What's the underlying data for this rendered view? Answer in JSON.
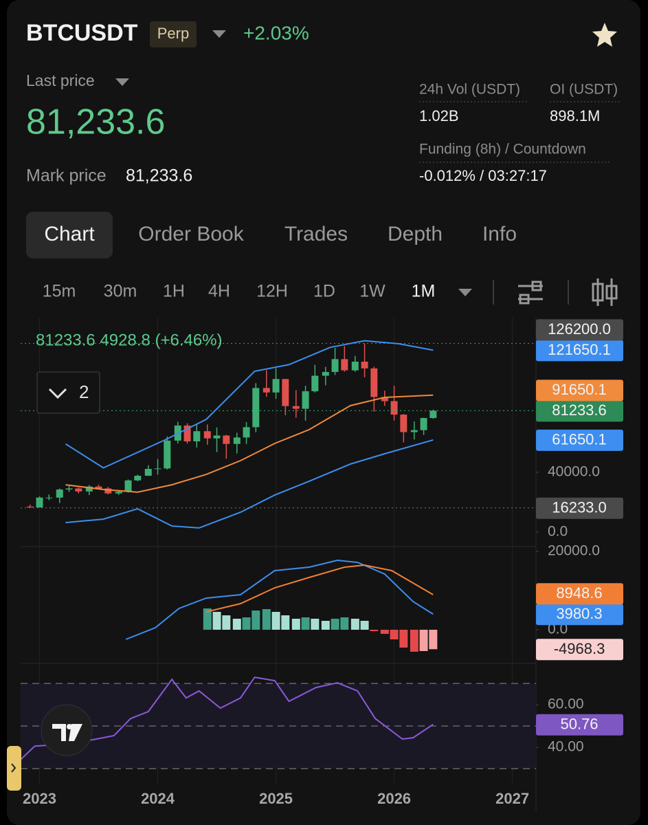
{
  "header": {
    "symbol": "BTCUSDT",
    "badge": "Perp",
    "change": "+2.03%"
  },
  "price": {
    "label": "Last price",
    "value": "81,233.6",
    "mark_label": "Mark price",
    "mark_value": "81,233.6"
  },
  "stats": [
    {
      "label": "24h Vol (USDT)",
      "value": "1.02B"
    },
    {
      "label": "OI (USDT)",
      "value": "898.1M"
    },
    {
      "label": "Funding (8h) / Countdown",
      "value": "-0.012% / 03:27:17"
    }
  ],
  "tabs": [
    "Chart",
    "Order Book",
    "Trades",
    "Depth",
    "Info"
  ],
  "intervals": [
    "15m",
    "30m",
    "1H",
    "4H",
    "12H",
    "1D",
    "1W",
    "1M"
  ],
  "chart_data": [
    {
      "type": "candlestick",
      "legend": "81233.6  4928.8 (+6.46%)",
      "indicator_count": "2",
      "xlim": [
        2022.84,
        2027.2
      ],
      "xticks": [
        2023,
        2024,
        2025,
        2026,
        2027
      ],
      "ylim": [
        -9650,
        143450
      ],
      "yticks": [
        {
          "value": 40000,
          "label": "40000.0"
        },
        {
          "value": 0,
          "label": "0.0"
        }
      ],
      "up_color": "#3fae74",
      "down_color": "#e0504d",
      "last_color": "#2e8a56",
      "x": [
        2022.92,
        2023.0,
        2023.08,
        2023.17,
        2023.25,
        2023.33,
        2023.42,
        2023.5,
        2023.58,
        2023.67,
        2023.75,
        2023.83,
        2023.92,
        2024.0,
        2024.08,
        2024.17,
        2024.25,
        2024.33,
        2024.42,
        2024.5,
        2024.58,
        2024.67,
        2024.75,
        2024.83,
        2024.92,
        2025.0,
        2025.08,
        2025.17,
        2025.25,
        2025.33,
        2025.42,
        2025.5,
        2025.58,
        2025.67,
        2025.75,
        2025.83,
        2025.92,
        2026.0,
        2026.08,
        2026.17,
        2026.25,
        2026.33
      ],
      "open": [
        17100,
        16500,
        23100,
        23100,
        28500,
        29200,
        27200,
        30500,
        29200,
        25900,
        27000,
        34600,
        37700,
        42300,
        42600,
        61200,
        71300,
        60700,
        67500,
        62700,
        64600,
        59000,
        63300,
        70200,
        96400,
        93400,
        102400,
        84300,
        82500,
        94200,
        104600,
        107100,
        115700,
        108200,
        114000,
        109500,
        90400,
        87600,
        78600,
        66900,
        68200,
        76304.8
      ],
      "high": [
        18400,
        23900,
        25200,
        29200,
        31000,
        29800,
        31400,
        31800,
        30200,
        27500,
        35200,
        38400,
        44700,
        48900,
        64000,
        73800,
        72800,
        71900,
        72000,
        70000,
        65100,
        66500,
        73600,
        99600,
        108300,
        109600,
        102500,
        95000,
        97900,
        111900,
        110500,
        123200,
        124500,
        117900,
        126200,
        110600,
        94600,
        97900,
        79000,
        74000,
        76500,
        81900
      ],
      "low": [
        16300,
        16500,
        21400,
        19500,
        26900,
        25800,
        24800,
        28900,
        25200,
        24900,
        26500,
        34100,
        37600,
        38500,
        41900,
        59300,
        59200,
        56600,
        58400,
        53500,
        49100,
        52600,
        58900,
        66800,
        90500,
        89200,
        78200,
        76600,
        74500,
        93400,
        98200,
        105100,
        107300,
        107200,
        103500,
        80600,
        84400,
        74600,
        60000,
        62000,
        65000,
        75800
      ],
      "close": [
        16500,
        23100,
        23100,
        28500,
        29200,
        27200,
        30500,
        29200,
        25900,
        27000,
        34600,
        37700,
        42300,
        42600,
        61200,
        71300,
        60700,
        67500,
        62700,
        64600,
        59000,
        63300,
        70200,
        96400,
        93400,
        102400,
        84300,
        82500,
        94200,
        104600,
        107100,
        115700,
        108200,
        114000,
        109500,
        90400,
        87600,
        78600,
        66900,
        68200,
        76304.8,
        81233.6
      ],
      "markers": [
        {
          "value": 126200,
          "label": "126200.0"
        },
        {
          "value": 16233,
          "label": "16233.0"
        }
      ],
      "marker_color": "#4a4a4a",
      "lines": [
        {
          "color": "#3d8ef0",
          "x": [
            2023.22,
            2023.54,
            2024.06,
            2024.41,
            2024.82,
            2025.11,
            2025.46,
            2025.75,
            2026.04,
            2026.33
          ],
          "values": [
            59000,
            43000,
            61600,
            75400,
            107600,
            112000,
            123600,
            128000,
            126000,
            121650.1
          ]
        },
        {
          "color": "#f08a3c",
          "x": [
            2023.22,
            2023.54,
            2023.83,
            2024.12,
            2024.41,
            2024.7,
            2024.99,
            2025.28,
            2025.63,
            2025.92,
            2026.33
          ],
          "values": [
            31700,
            28500,
            26700,
            31700,
            38600,
            47800,
            59300,
            68500,
            84600,
            90100,
            91650.1
          ]
        },
        {
          "color": "#3d8ef0",
          "x": [
            2023.22,
            2023.54,
            2023.83,
            2024.12,
            2024.35,
            2024.7,
            2024.99,
            2025.28,
            2025.63,
            2025.92,
            2026.33
          ],
          "values": [
            6400,
            8700,
            15600,
            4100,
            2800,
            13300,
            24800,
            34000,
            45500,
            52400,
            61650.1
          ]
        }
      ]
    },
    {
      "type": "macd",
      "ylim": [
        -8600,
        21230
      ],
      "yticks": [
        {
          "value": 20000,
          "label": "20000.0"
        },
        {
          "value": 0,
          "label": "0.0"
        }
      ],
      "histogram": {
        "x": [
          2024.42,
          2024.5,
          2024.58,
          2024.67,
          2024.75,
          2024.83,
          2024.92,
          2025.0,
          2025.08,
          2025.17,
          2025.25,
          2025.33,
          2025.42,
          2025.5,
          2025.58,
          2025.67,
          2025.75,
          2025.83,
          2025.92,
          2026.0,
          2026.08,
          2026.17,
          2026.25,
          2026.33
        ],
        "values": [
          5440,
          4560,
          3680,
          2810,
          3160,
          4910,
          5260,
          4560,
          3680,
          2810,
          3160,
          2810,
          2280,
          2810,
          3160,
          2810,
          2280,
          -350,
          -1050,
          -2460,
          -4560,
          -5610,
          -5440,
          -4968.3
        ],
        "colors": {
          "rising_positive": "#3f9f86",
          "falling_positive": "#a9dfd2",
          "falling_negative": "#e5494b",
          "rising_negative": "#f5a3a3"
        },
        "label_color": "#f9d0d0",
        "label_text_color": "#222222"
      },
      "lines": [
        {
          "color": "#3d8ef0",
          "x": [
            2023.73,
            2023.98,
            2024.18,
            2024.41,
            2024.7,
            2024.99,
            2025.28,
            2025.52,
            2025.69,
            2025.92,
            2026.16,
            2026.33
          ],
          "values": [
            -2460,
            530,
            5440,
            8070,
            8950,
            15090,
            15960,
            17720,
            17190,
            14210,
            7190,
            3980.3
          ]
        },
        {
          "color": "#f07f35",
          "x": [
            2024.41,
            2024.7,
            2024.99,
            2025.28,
            2025.58,
            2025.75,
            2025.98,
            2026.33
          ],
          "values": [
            4560,
            6670,
            10700,
            13330,
            15960,
            16490,
            15090,
            8948.6
          ]
        }
      ]
    },
    {
      "type": "rsi",
      "ylim": [
        22.9,
        79.4
      ],
      "yticks": [
        {
          "value": 60,
          "label": "60.00"
        },
        {
          "value": 40,
          "label": "40.00"
        }
      ],
      "levels": [
        70,
        50,
        30
      ],
      "band_color": "#1b1826",
      "lines": [
        {
          "color": "#8a5ad8",
          "label_color": "#7e57c2",
          "x": [
            2022.84,
            2022.96,
            2023.25,
            2023.48,
            2023.63,
            2023.77,
            2023.92,
            2024.12,
            2024.24,
            2024.35,
            2024.53,
            2024.7,
            2024.82,
            2024.99,
            2025.11,
            2025.34,
            2025.52,
            2025.69,
            2025.84,
            2026.07,
            2026.16,
            2026.33
          ],
          "values": [
            34.2,
            40.6,
            41.6,
            43.9,
            45.5,
            53.5,
            56.8,
            71.9,
            63.2,
            66.5,
            58.4,
            63.2,
            72.9,
            71.3,
            61.6,
            68.1,
            70.3,
            66.5,
            53.5,
            43.9,
            44.5,
            50.76
          ]
        }
      ]
    }
  ]
}
